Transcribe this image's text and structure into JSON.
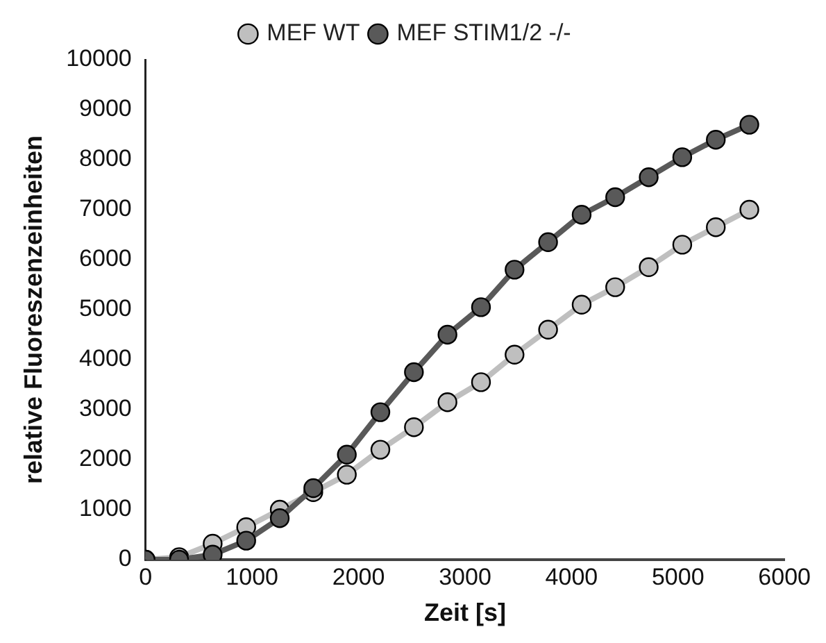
{
  "chart_data": {
    "type": "line",
    "xlabel": "Zeit [s]",
    "ylabel": "relative Fluoreszenzeinheiten",
    "x": [
      0,
      315,
      630,
      945,
      1260,
      1575,
      1890,
      2205,
      2520,
      2835,
      3150,
      3465,
      3780,
      4095,
      4410,
      4725,
      5040,
      5355,
      5670
    ],
    "series": [
      {
        "name": "MEF WT",
        "color": "#bfbfbf",
        "values": [
          0,
          50,
          320,
          650,
          1000,
          1350,
          1700,
          2200,
          2650,
          3150,
          3550,
          4100,
          4600,
          5100,
          5450,
          5850,
          6300,
          6650,
          7000
        ]
      },
      {
        "name": "MEF STIM1/2 -/-",
        "color": "#595959",
        "values": [
          0,
          0,
          100,
          380,
          830,
          1430,
          2100,
          2950,
          3750,
          4500,
          5050,
          5800,
          6350,
          6900,
          7250,
          7650,
          8050,
          8400,
          8700
        ]
      }
    ],
    "xlim": [
      0,
      6000
    ],
    "xticks": [
      0,
      1000,
      2000,
      3000,
      4000,
      5000,
      6000
    ],
    "ylim": [
      0,
      10000
    ],
    "yticks": [
      0,
      1000,
      2000,
      3000,
      4000,
      5000,
      6000,
      7000,
      8000,
      9000,
      10000
    ],
    "grid": false,
    "legend": "top",
    "marker": "circle",
    "line_style": "solid"
  }
}
